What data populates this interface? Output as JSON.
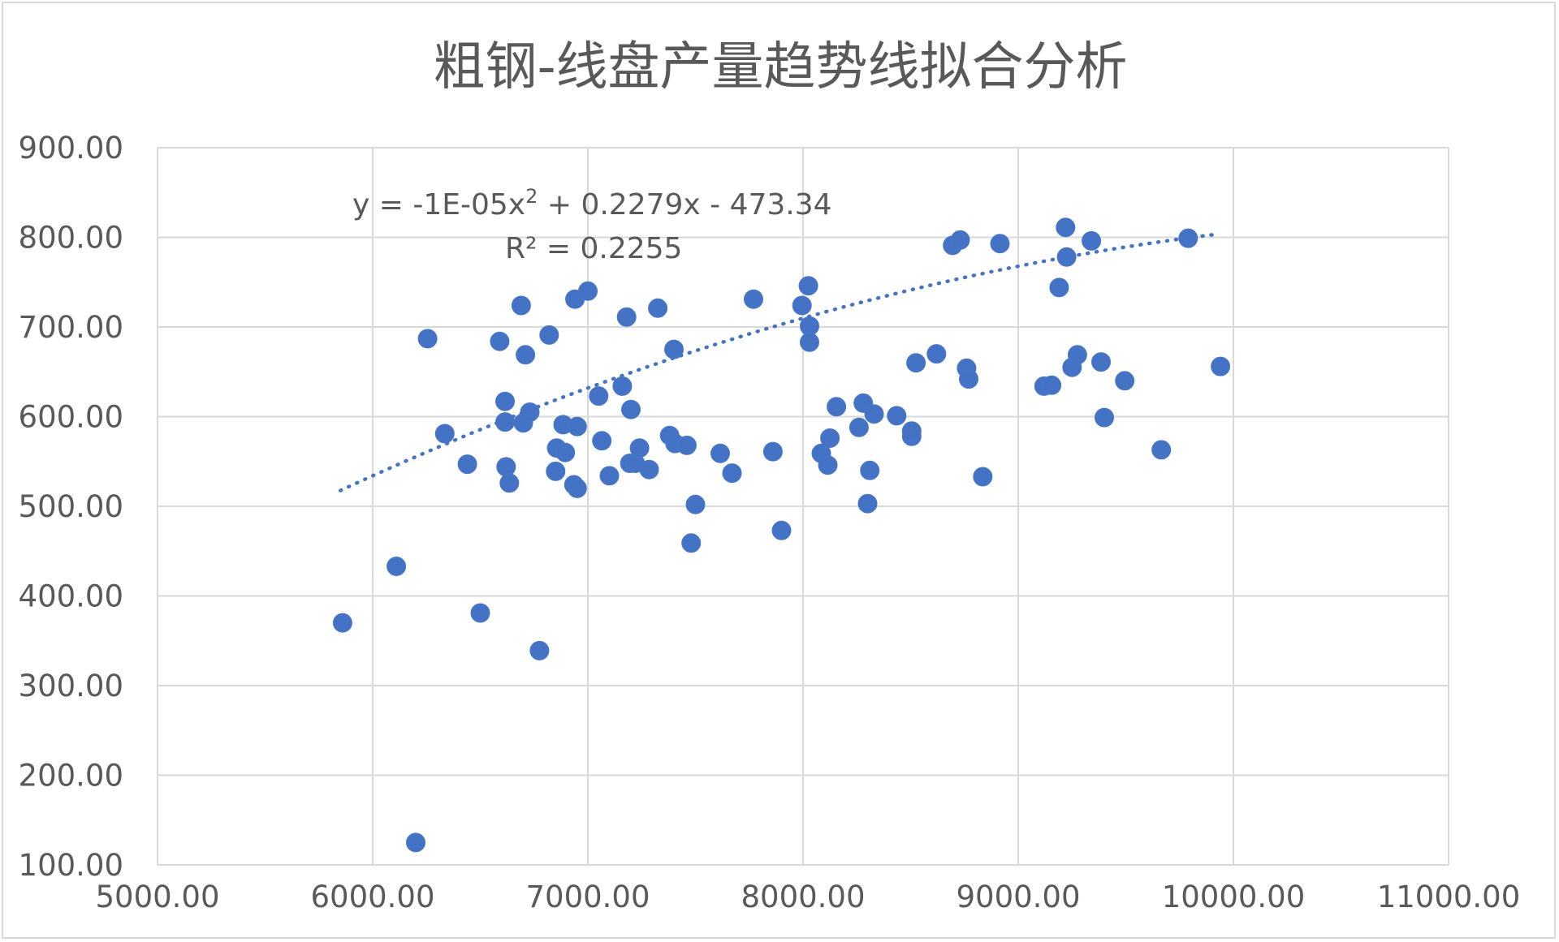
{
  "chart_data": {
    "type": "scatter",
    "title": "粗钢-线盘产量趋势线拟合分析",
    "xlim": [
      5000,
      11000
    ],
    "ylim": [
      100,
      900
    ],
    "x_ticks": [
      "5000.00",
      "6000.00",
      "7000.00",
      "8000.00",
      "9000.00",
      "10000.00",
      "11000.00"
    ],
    "y_ticks": [
      "100.00",
      "200.00",
      "300.00",
      "400.00",
      "500.00",
      "600.00",
      "700.00",
      "800.00",
      "900.00"
    ],
    "grid": true,
    "marker_color": "#4472c4",
    "trendline": {
      "type": "polynomial",
      "order": 2,
      "equation_prefix": "y = -1E-05x",
      "equation_sup": "2",
      "equation_suffix": " + 0.2279x - 473.34",
      "r_squared": "R² = 0.2255",
      "coefficients": {
        "a": -1e-05,
        "b": 0.2279,
        "c": -473.34
      },
      "x_range": [
        5850,
        9930
      ],
      "color": "#4472c4"
    },
    "points": [
      {
        "x": 5860,
        "y": 370
      },
      {
        "x": 6110,
        "y": 433
      },
      {
        "x": 6200,
        "y": 125
      },
      {
        "x": 6255,
        "y": 687
      },
      {
        "x": 6335,
        "y": 581
      },
      {
        "x": 6440,
        "y": 547
      },
      {
        "x": 6500,
        "y": 381
      },
      {
        "x": 6590,
        "y": 684
      },
      {
        "x": 6615,
        "y": 617
      },
      {
        "x": 6615,
        "y": 594
      },
      {
        "x": 6620,
        "y": 544
      },
      {
        "x": 6635,
        "y": 526
      },
      {
        "x": 6690,
        "y": 724
      },
      {
        "x": 6700,
        "y": 593
      },
      {
        "x": 6710,
        "y": 669
      },
      {
        "x": 6730,
        "y": 605
      },
      {
        "x": 6775,
        "y": 339
      },
      {
        "x": 6820,
        "y": 691
      },
      {
        "x": 6850,
        "y": 539
      },
      {
        "x": 6855,
        "y": 565
      },
      {
        "x": 6885,
        "y": 591
      },
      {
        "x": 6895,
        "y": 560
      },
      {
        "x": 6935,
        "y": 524
      },
      {
        "x": 6940,
        "y": 731
      },
      {
        "x": 6950,
        "y": 520
      },
      {
        "x": 6950,
        "y": 589
      },
      {
        "x": 7000,
        "y": 740
      },
      {
        "x": 7050,
        "y": 623
      },
      {
        "x": 7065,
        "y": 573
      },
      {
        "x": 7100,
        "y": 534
      },
      {
        "x": 7160,
        "y": 634
      },
      {
        "x": 7180,
        "y": 711
      },
      {
        "x": 7195,
        "y": 548
      },
      {
        "x": 7200,
        "y": 608
      },
      {
        "x": 7220,
        "y": 548
      },
      {
        "x": 7240,
        "y": 565
      },
      {
        "x": 7285,
        "y": 541
      },
      {
        "x": 7325,
        "y": 721
      },
      {
        "x": 7380,
        "y": 579
      },
      {
        "x": 7400,
        "y": 675
      },
      {
        "x": 7405,
        "y": 570
      },
      {
        "x": 7460,
        "y": 568
      },
      {
        "x": 7480,
        "y": 459
      },
      {
        "x": 7500,
        "y": 502
      },
      {
        "x": 7615,
        "y": 559
      },
      {
        "x": 7670,
        "y": 537
      },
      {
        "x": 7770,
        "y": 731
      },
      {
        "x": 7860,
        "y": 561
      },
      {
        "x": 7900,
        "y": 473
      },
      {
        "x": 7995,
        "y": 724
      },
      {
        "x": 8025,
        "y": 746
      },
      {
        "x": 8030,
        "y": 701
      },
      {
        "x": 8030,
        "y": 683
      },
      {
        "x": 8085,
        "y": 559
      },
      {
        "x": 8115,
        "y": 546
      },
      {
        "x": 8125,
        "y": 576
      },
      {
        "x": 8155,
        "y": 611
      },
      {
        "x": 8260,
        "y": 588
      },
      {
        "x": 8280,
        "y": 615
      },
      {
        "x": 8300,
        "y": 503
      },
      {
        "x": 8310,
        "y": 540
      },
      {
        "x": 8330,
        "y": 603
      },
      {
        "x": 8435,
        "y": 601
      },
      {
        "x": 8505,
        "y": 578
      },
      {
        "x": 8505,
        "y": 584
      },
      {
        "x": 8525,
        "y": 660
      },
      {
        "x": 8620,
        "y": 670
      },
      {
        "x": 8695,
        "y": 791
      },
      {
        "x": 8730,
        "y": 797
      },
      {
        "x": 8760,
        "y": 654
      },
      {
        "x": 8770,
        "y": 642
      },
      {
        "x": 8835,
        "y": 533
      },
      {
        "x": 8915,
        "y": 793
      },
      {
        "x": 9120,
        "y": 634
      },
      {
        "x": 9155,
        "y": 635
      },
      {
        "x": 9190,
        "y": 744
      },
      {
        "x": 9220,
        "y": 811
      },
      {
        "x": 9225,
        "y": 778
      },
      {
        "x": 9250,
        "y": 655
      },
      {
        "x": 9275,
        "y": 669
      },
      {
        "x": 9340,
        "y": 796
      },
      {
        "x": 9385,
        "y": 661
      },
      {
        "x": 9400,
        "y": 599
      },
      {
        "x": 9495,
        "y": 640
      },
      {
        "x": 9665,
        "y": 563
      },
      {
        "x": 9790,
        "y": 799
      },
      {
        "x": 9940,
        "y": 656
      }
    ]
  }
}
